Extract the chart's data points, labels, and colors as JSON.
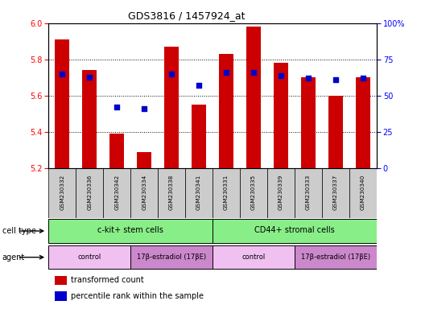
{
  "title": "GDS3816 / 1457924_at",
  "samples": [
    "GSM230332",
    "GSM230336",
    "GSM230342",
    "GSM230334",
    "GSM230338",
    "GSM230341",
    "GSM230331",
    "GSM230335",
    "GSM230339",
    "GSM230333",
    "GSM230337",
    "GSM230340"
  ],
  "transformed_count": [
    5.91,
    5.74,
    5.39,
    5.29,
    5.87,
    5.55,
    5.83,
    5.98,
    5.78,
    5.7,
    5.6,
    5.7
  ],
  "percentile_rank": [
    65,
    63,
    42,
    41,
    65,
    57,
    66,
    66,
    64,
    62,
    61,
    62
  ],
  "bar_color": "#cc0000",
  "dot_color": "#0000cc",
  "ylim_left": [
    5.2,
    6.0
  ],
  "ylim_right": [
    0,
    100
  ],
  "yticks_left": [
    5.2,
    5.4,
    5.6,
    5.8,
    6.0
  ],
  "yticks_right": [
    0,
    25,
    50,
    75,
    100
  ],
  "cell_type_labels": [
    "c-kit+ stem cells",
    "CD44+ stromal cells"
  ],
  "cell_type_color": "#88ee88",
  "agent_control_color": "#f0c0f0",
  "agent_estradiol_color": "#cc88cc",
  "legend_bar_label": "transformed count",
  "legend_dot_label": "percentile rank within the sample",
  "bar_bottom": 5.2,
  "sample_bg_color": "#cccccc",
  "title_fontsize": 9,
  "tick_fontsize": 7,
  "label_fontsize": 7,
  "bar_width": 0.55
}
